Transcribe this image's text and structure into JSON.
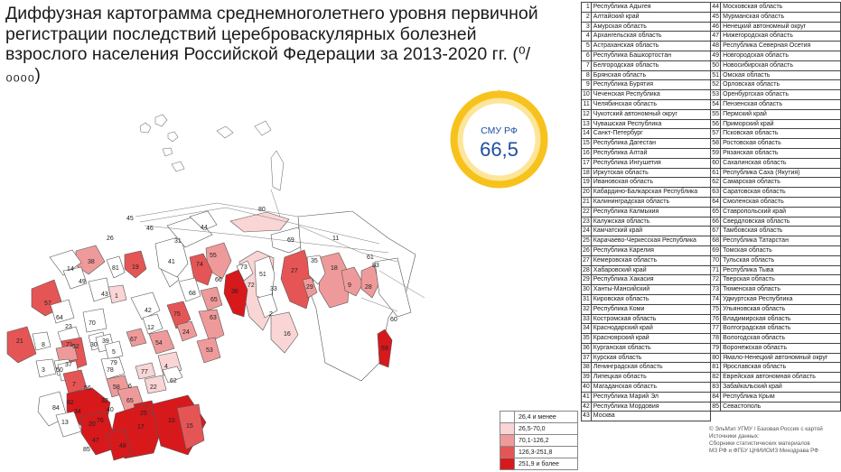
{
  "title": "Диффузная картограмма среднемноголетнего уровня первичной регистрации последствий цереброваскулярных болезней взрослого населения Российской Федерации за 2013-2020 гг. (⁰/₀₀₀₀)",
  "badge": {
    "label": "СМУ РФ",
    "value": "66,5"
  },
  "colors": {
    "c1": "#ffffff",
    "c2": "#f9d5d5",
    "c3": "#ef9a9a",
    "c4": "#e65555",
    "c5": "#d7191c",
    "badge_ring": "#f7c21c",
    "badge_ring_light": "#fde59a"
  },
  "legend": [
    {
      "label": "26,4 и менее",
      "color": "#ffffff"
    },
    {
      "label": "26,5-70,0",
      "color": "#f9d5d5"
    },
    {
      "label": "70,1-126,2",
      "color": "#ef9a9a"
    },
    {
      "label": "126,3-251,8",
      "color": "#e65555"
    },
    {
      "label": "251,9 и более",
      "color": "#d7191c"
    }
  ],
  "regions": [
    "Республика Адыгея",
    "Алтайский край",
    "Амурская область",
    "Архангельская область",
    "Астраханская область",
    "Республика Башкортостан",
    "Белгородская область",
    "Брянская область",
    "Республика Бурятия",
    "Чеченская Республика",
    "Челябинская область",
    "Чукотский автономный округ",
    "Чувашская Республика",
    "Санкт-Петербург",
    "Республика Дагестан",
    "Республика Алтай",
    "Республика Ингушетия",
    "Иркутская область",
    "Ивановская область",
    "Кабардино-Балкарская Республика",
    "Калининградская область",
    "Республика Калмыкия",
    "Калужская область",
    "Камчатский край",
    "Карачаево-Черкесская Республика",
    "Республика Карелия",
    "Кемеровская область",
    "Хабаровский край",
    "Республика Хакасия",
    "Ханты-Мансийский",
    "Кировская область",
    "Республика Коми",
    "Костромская область",
    "Краснодарский край",
    "Красноярский край",
    "Курганская область",
    "Курская область",
    "Ленинградская область",
    "Липецкая область",
    "Магаданская область",
    "Республика Марий Эл",
    "Республика Мордовия",
    "Москва",
    "Московская область",
    "Мурманская область",
    "Ненецкий автономный округ",
    "Нижегородская область",
    "Республика Северная Осетия",
    "Новгородская область",
    "Новосибирская область",
    "Омская область",
    "Орловская область",
    "Оренбургская область",
    "Пензенская область",
    "Пермский край",
    "Приморский край",
    "Псковская область",
    "Ростовская область",
    "Рязанская область",
    "Сахалинская область",
    "Республика Саха (Якутия)",
    "Самарская область",
    "Саратовская область",
    "Смоленская область",
    "Ставропольский край",
    "Свердловская область",
    "Тамбовская область",
    "Республика Татарстан",
    "Томская область",
    "Тульская область",
    "Республика Тыва",
    "Тверская область",
    "Тюменская область",
    "Удмуртская Республика",
    "Ульяновская область",
    "Владимирская область",
    "Волгоградская область",
    "Вологодская область",
    "Воронежская область",
    "Ямало-Ненецкий автономный округ",
    "Ярославская область",
    "Еврейская автономная область",
    "Забайкальский край",
    "Республика Крым",
    "Севастополь"
  ],
  "map_labels": [
    "45",
    "26",
    "31",
    "44",
    "80",
    "69",
    "11",
    "46",
    "38",
    "14",
    "81",
    "19",
    "41",
    "74",
    "55",
    "73",
    "51",
    "27",
    "35",
    "18",
    "9",
    "28",
    "61",
    "49",
    "57",
    "43",
    "1",
    "68",
    "36",
    "66",
    "65",
    "29",
    "83",
    "63",
    "33",
    "72",
    "2",
    "60",
    "64",
    "42",
    "75",
    "12",
    "24",
    "71",
    "52",
    "30",
    "39",
    "67",
    "54",
    "16",
    "70",
    "59",
    "23",
    "5",
    "53",
    "4",
    "21",
    "8",
    "79",
    "50",
    "37",
    "3",
    "7",
    "77",
    "58",
    "22",
    "84",
    "34",
    "65",
    "25",
    "17",
    "10",
    "15",
    "32",
    "62",
    "40",
    "48",
    "85",
    "47",
    "13",
    "20",
    "6",
    "76",
    "78",
    "56",
    "82"
  ],
  "source": [
    "© ЭльМэп УГМУ / Базовая Россия с картой",
    "Источники данных:",
    "Сборники статистических материалов",
    "МЗ РФ и ФГБУ ЦНИИОИЗ Минздрава РФ"
  ]
}
